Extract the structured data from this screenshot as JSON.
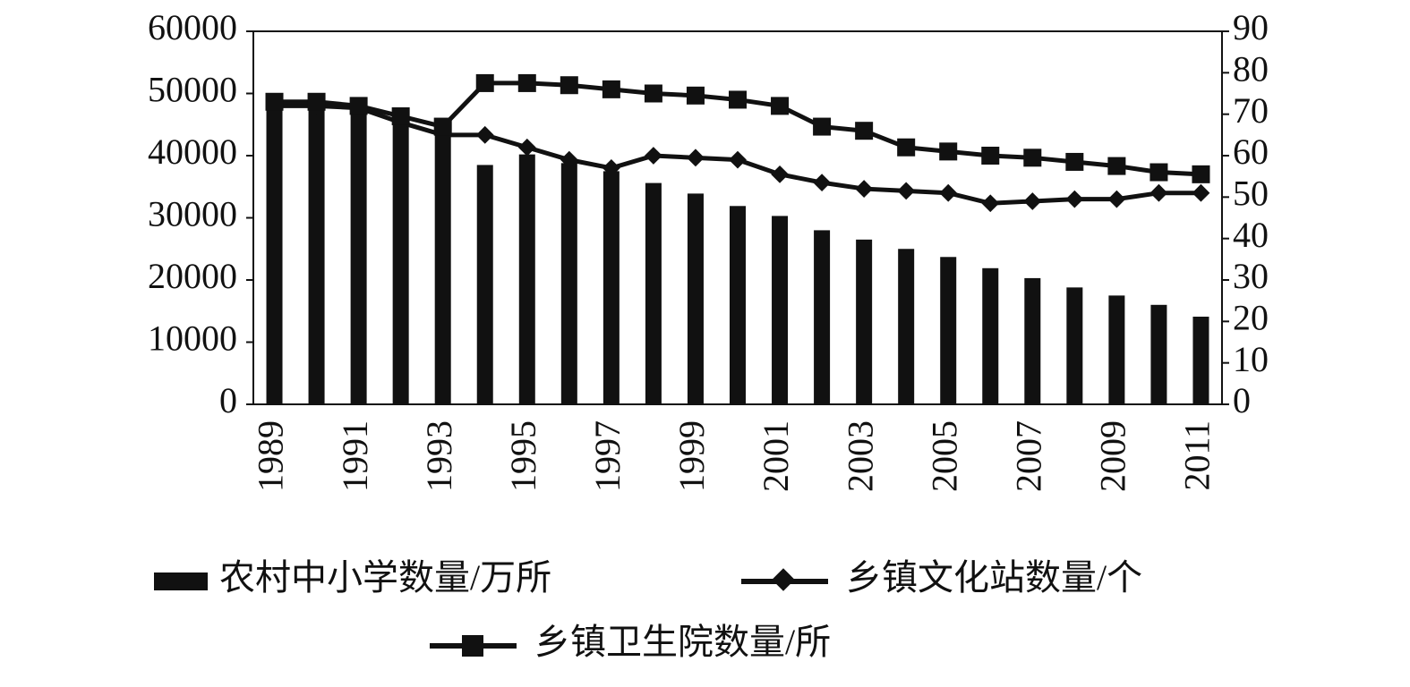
{
  "chart_data": {
    "type": "bar_line",
    "categories": [
      "1989",
      null,
      "1991",
      null,
      "1993",
      null,
      "1995",
      null,
      "1997",
      null,
      "1999",
      null,
      "2001",
      null,
      "2003",
      null,
      "2005",
      null,
      "2007",
      null,
      "2009",
      null,
      "2011"
    ],
    "series": [
      {
        "name": "农村中小学数量/万所",
        "type": "bar",
        "color": "#111111",
        "axis": "y",
        "values": [
          49000,
          48500,
          47500,
          45500,
          43500,
          38500,
          40200,
          38800,
          37500,
          35600,
          33900,
          31900,
          30300,
          28000,
          26500,
          25000,
          23700,
          21900,
          20300,
          18800,
          17500,
          16000,
          14100
        ]
      },
      {
        "name": "乡镇文化站数量/个",
        "type": "line",
        "marker": "diamond",
        "color": "#111111",
        "axis": "y2",
        "values": [
          72,
          72,
          71.5,
          68,
          65,
          65,
          62,
          59,
          57,
          60,
          59.5,
          59,
          55.5,
          53.5,
          52,
          51.5,
          51,
          48.5,
          49,
          49.5,
          49.5,
          51,
          51
        ]
      },
      {
        "name": "乡镇卫生院数量/所",
        "type": "line",
        "marker": "square",
        "color": "#111111",
        "axis": "y2",
        "values": [
          73,
          73,
          72,
          69.5,
          67,
          77.5,
          77.5,
          77,
          76,
          75,
          74.5,
          73.5,
          72,
          67,
          66,
          62,
          61,
          60,
          59.5,
          58.5,
          57.5,
          56,
          55.5
        ]
      }
    ],
    "ylim": [
      0,
      60000
    ],
    "yticks": [
      0,
      10000,
      20000,
      30000,
      40000,
      50000,
      60000
    ],
    "y2lim": [
      0,
      90
    ],
    "y2ticks": [
      0,
      10,
      20,
      30,
      40,
      50,
      60,
      70,
      80,
      90
    ]
  }
}
